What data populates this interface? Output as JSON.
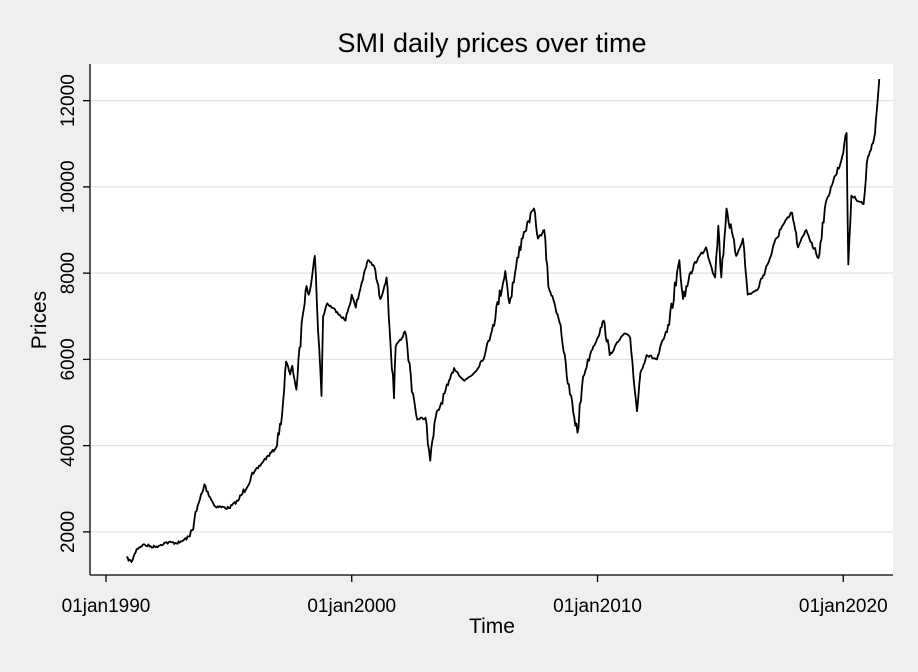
{
  "chart_data": {
    "type": "line",
    "title": "SMI daily prices over time",
    "xlabel": "Time",
    "ylabel": "Prices",
    "x_axis": {
      "type": "date",
      "range": [
        "1990-01-01",
        "2021-06-30"
      ],
      "ticks": [
        {
          "date": "1990-01-01",
          "label": "01jan1990"
        },
        {
          "date": "2000-01-01",
          "label": "01jan2000"
        },
        {
          "date": "2010-01-01",
          "label": "01jan2010"
        },
        {
          "date": "2020-01-01",
          "label": "01jan2020"
        }
      ]
    },
    "y_axis": {
      "range": [
        1000,
        12850
      ],
      "ticks": [
        {
          "value": 2000,
          "label": "2000"
        },
        {
          "value": 4000,
          "label": "4000"
        },
        {
          "value": 6000,
          "label": "6000"
        },
        {
          "value": 8000,
          "label": "8000"
        },
        {
          "value": 10000,
          "label": "10000"
        },
        {
          "value": 12000,
          "label": "12000"
        }
      ]
    },
    "grid": "horizontal",
    "legend": "none",
    "colors": {
      "background": "#efefef",
      "plot_background": "#ffffff",
      "line": "#000000",
      "grid": "#e2e2e2"
    },
    "series": [
      {
        "color": "#000000",
        "points": [
          [
            "1990-11-01",
            1400
          ],
          [
            "1991-01-15",
            1300
          ],
          [
            "1991-04-01",
            1600
          ],
          [
            "1991-07-01",
            1700
          ],
          [
            "1992-01-01",
            1650
          ],
          [
            "1992-06-01",
            1750
          ],
          [
            "1993-01-01",
            1750
          ],
          [
            "1993-06-01",
            1900
          ],
          [
            "1994-01-01",
            3100
          ],
          [
            "1994-06-01",
            2600
          ],
          [
            "1995-01-01",
            2550
          ],
          [
            "1995-06-01",
            2750
          ],
          [
            "1996-01-01",
            3350
          ],
          [
            "1996-06-01",
            3650
          ],
          [
            "1996-12-01",
            3950
          ],
          [
            "1997-03-01",
            4700
          ],
          [
            "1997-05-01",
            5950
          ],
          [
            "1997-07-01",
            5650
          ],
          [
            "1997-08-01",
            5850
          ],
          [
            "1997-10-01",
            5300
          ],
          [
            "1998-01-01",
            7000
          ],
          [
            "1998-03-01",
            7700
          ],
          [
            "1998-04-01",
            7500
          ],
          [
            "1998-07-01",
            8400
          ],
          [
            "1998-10-08",
            5150
          ],
          [
            "1998-11-01",
            7000
          ],
          [
            "1999-01-01",
            7300
          ],
          [
            "1999-06-01",
            7100
          ],
          [
            "1999-10-01",
            6900
          ],
          [
            "2000-01-01",
            7500
          ],
          [
            "2000-03-01",
            7200
          ],
          [
            "2000-07-01",
            8000
          ],
          [
            "2000-09-01",
            8300
          ],
          [
            "2000-12-01",
            8150
          ],
          [
            "2001-03-01",
            7400
          ],
          [
            "2001-06-01",
            7900
          ],
          [
            "2001-09-20",
            5100
          ],
          [
            "2001-10-15",
            6300
          ],
          [
            "2002-01-01",
            6450
          ],
          [
            "2002-03-01",
            6650
          ],
          [
            "2002-07-01",
            5200
          ],
          [
            "2002-09-01",
            4600
          ],
          [
            "2003-01-01",
            4650
          ],
          [
            "2003-03-12",
            3650
          ],
          [
            "2003-06-01",
            4650
          ],
          [
            "2003-12-01",
            5400
          ],
          [
            "2004-03-01",
            5800
          ],
          [
            "2004-08-01",
            5500
          ],
          [
            "2005-01-01",
            5700
          ],
          [
            "2005-06-01",
            6100
          ],
          [
            "2005-10-01",
            6800
          ],
          [
            "2006-04-01",
            8050
          ],
          [
            "2006-06-01",
            7300
          ],
          [
            "2006-12-01",
            8800
          ],
          [
            "2007-06-01",
            9500
          ],
          [
            "2007-08-01",
            8800
          ],
          [
            "2007-11-01",
            9000
          ],
          [
            "2008-01-01",
            7700
          ],
          [
            "2008-04-01",
            7300
          ],
          [
            "2008-07-01",
            6800
          ],
          [
            "2008-10-01",
            5600
          ],
          [
            "2009-03-09",
            4300
          ],
          [
            "2009-06-01",
            5600
          ],
          [
            "2009-10-01",
            6200
          ],
          [
            "2010-01-01",
            6500
          ],
          [
            "2010-04-01",
            6900
          ],
          [
            "2010-07-01",
            6100
          ],
          [
            "2010-11-01",
            6400
          ],
          [
            "2011-02-01",
            6600
          ],
          [
            "2011-05-01",
            6500
          ],
          [
            "2011-08-10",
            4800
          ],
          [
            "2011-10-01",
            5700
          ],
          [
            "2012-01-01",
            6100
          ],
          [
            "2012-06-01",
            6000
          ],
          [
            "2012-12-01",
            6800
          ],
          [
            "2013-05-01",
            8300
          ],
          [
            "2013-06-25",
            7400
          ],
          [
            "2013-12-01",
            8200
          ],
          [
            "2014-06-01",
            8600
          ],
          [
            "2014-10-15",
            7900
          ],
          [
            "2014-12-01",
            9100
          ],
          [
            "2015-01-15",
            7900
          ],
          [
            "2015-04-01",
            9500
          ],
          [
            "2015-08-24",
            8400
          ],
          [
            "2015-12-01",
            8800
          ],
          [
            "2016-02-11",
            7500
          ],
          [
            "2016-06-27",
            7600
          ],
          [
            "2016-12-01",
            8200
          ],
          [
            "2017-06-01",
            9000
          ],
          [
            "2017-12-01",
            9400
          ],
          [
            "2018-03-01",
            8600
          ],
          [
            "2018-07-01",
            9000
          ],
          [
            "2018-12-27",
            8350
          ],
          [
            "2019-04-01",
            9500
          ],
          [
            "2019-07-01",
            10000
          ],
          [
            "2019-12-01",
            10600
          ],
          [
            "2020-02-19",
            11250
          ],
          [
            "2020-03-16",
            8200
          ],
          [
            "2020-05-01",
            9800
          ],
          [
            "2020-10-30",
            9600
          ],
          [
            "2021-01-01",
            10700
          ],
          [
            "2021-04-01",
            11100
          ],
          [
            "2021-06-01",
            12100
          ],
          [
            "2021-06-20",
            12500
          ]
        ]
      }
    ]
  }
}
